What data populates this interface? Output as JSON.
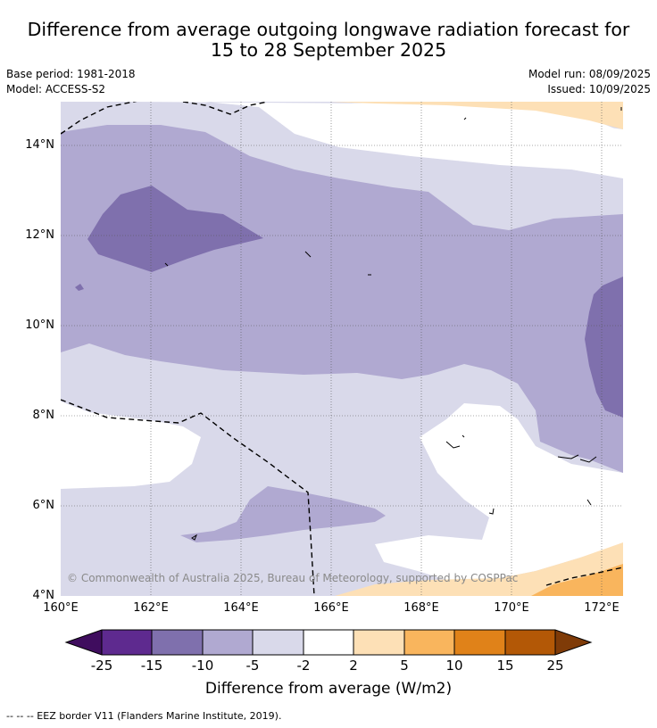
{
  "title_line1": "Difference from average outgoing longwave radiation forecast for",
  "title_line2": "15 to 28 September 2025",
  "base_period": "Base period: 1981-2018",
  "model": "Model: ACCESS-S2",
  "model_run": "Model run: 08/09/2025",
  "issued": "Issued: 10/09/2025",
  "lat_labels": [
    "14°N",
    "12°N",
    "10°N",
    "8°N",
    "6°N",
    "4°N"
  ],
  "lon_labels": [
    "160°E",
    "162°E",
    "164°E",
    "166°E",
    "168°E",
    "170°E",
    "172°E"
  ],
  "copyright": "© Commonwealth of Australia 2025, Bureau of Meteorology, supported by COSPPac",
  "colorbar": {
    "labels": [
      "-25",
      "-15",
      "-10",
      "-5",
      "-2",
      "2",
      "5",
      "10",
      "15",
      "25"
    ],
    "colors": [
      "#3f0d5e",
      "#5e2a8f",
      "#7f70ad",
      "#b0a9d1",
      "#d9d9ea",
      "#ffffff",
      "#fde0b6",
      "#f9b55d",
      "#e08219",
      "#b35806",
      "#7f3b08"
    ],
    "title": "Difference from average (W/m2)"
  },
  "footnote": "--  --  -- EEZ border V11 (Flanders Marine Institute, 2019).",
  "map_data": {
    "lon_range": [
      160,
      172.5
    ],
    "lat_range": [
      4,
      15
    ],
    "lon_ticks": [
      160,
      162,
      164,
      166,
      168,
      170,
      172
    ],
    "lat_ticks": [
      14,
      12,
      10,
      8,
      6,
      4
    ]
  }
}
